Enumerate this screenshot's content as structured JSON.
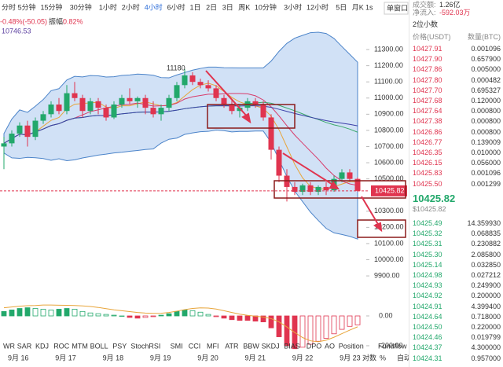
{
  "toolbar": {
    "timeframes": [
      "分时",
      "5分钟",
      "15分钟",
      "30分钟",
      "1小时",
      "2小时",
      "4小时",
      "6小时",
      "1日",
      "2日",
      "3日",
      "周K",
      "10分钟",
      "3小时",
      "12小时",
      "5日",
      "月K"
    ],
    "active": "4小时",
    "speed": "1s",
    "window": "单窗口"
  },
  "stats": {
    "turnover_label": "成交额:",
    "turnover": "1.26亿",
    "inflow_label": "净流入:",
    "inflow": "-592.03万"
  },
  "info": {
    "change": "-0.48%(-50.05)",
    "amplitude_label": "振幅:",
    "amplitude": "0.82%",
    "ma": "10746.53"
  },
  "chart_data": {
    "type": "candlestick",
    "annotation": "11180",
    "current_price": 10425.82,
    "current_label": "10425.82",
    "ylim": [
      9808,
      11412
    ],
    "yticks": [
      {
        "value": 11300,
        "label": "11300.00"
      },
      {
        "value": 11200,
        "label": "11200.00"
      },
      {
        "value": 11100,
        "label": "11100.00"
      },
      {
        "value": 11000,
        "label": "11000.00"
      },
      {
        "value": 10900,
        "label": "10900.00"
      },
      {
        "value": 10800,
        "label": "10800.00"
      },
      {
        "value": 10700,
        "label": "10700.00"
      },
      {
        "value": 10600,
        "label": "10600.00"
      },
      {
        "value": 10500,
        "label": "10500.00"
      },
      {
        "value": 10300,
        "label": "10300.00"
      },
      {
        "value": 10200,
        "label": "10200.00"
      },
      {
        "value": 10100,
        "label": "10100.00"
      },
      {
        "value": 10000,
        "label": "10000.00"
      },
      {
        "value": 9900,
        "label": "9900.00"
      }
    ],
    "candles": [
      [
        10700,
        10760,
        10560,
        10720
      ],
      [
        10720,
        10800,
        10700,
        10780
      ],
      [
        10780,
        10850,
        10760,
        10830
      ],
      [
        10830,
        10860,
        10700,
        10760
      ],
      [
        10760,
        10880,
        10740,
        10860
      ],
      [
        10860,
        10920,
        10840,
        10900
      ],
      [
        10900,
        10980,
        10880,
        10960
      ],
      [
        10960,
        11000,
        10900,
        10920
      ],
      [
        10920,
        11080,
        10900,
        11030
      ],
      [
        11030,
        11100,
        10980,
        11000
      ],
      [
        11000,
        11020,
        10880,
        10920
      ],
      [
        10920,
        11000,
        10900,
        10980
      ],
      [
        10980,
        11000,
        10900,
        10940
      ],
      [
        10940,
        10960,
        10860,
        10880
      ],
      [
        10880,
        10980,
        10870,
        10960
      ],
      [
        10960,
        11020,
        10940,
        11000
      ],
      [
        11000,
        11060,
        10960,
        10980
      ],
      [
        10980,
        11010,
        10940,
        11000
      ],
      [
        11000,
        11020,
        10900,
        10940
      ],
      [
        10940,
        10980,
        10880,
        10900
      ],
      [
        10900,
        10960,
        10860,
        10940
      ],
      [
        10940,
        11020,
        10920,
        11000
      ],
      [
        11000,
        11100,
        10980,
        11080
      ],
      [
        11080,
        11180,
        11060,
        11140
      ],
      [
        11140,
        11160,
        11080,
        11100
      ],
      [
        11100,
        11120,
        11060,
        11080
      ],
      [
        11080,
        11110,
        11040,
        11060
      ],
      [
        11060,
        11080,
        10980,
        11000
      ],
      [
        11000,
        11020,
        10940,
        10960
      ],
      [
        10960,
        10990,
        10900,
        10920
      ],
      [
        10920,
        10960,
        10880,
        10940
      ],
      [
        10940,
        11000,
        10920,
        10980
      ],
      [
        10980,
        11000,
        10940,
        10960
      ],
      [
        10960,
        10980,
        10860,
        10880
      ],
      [
        10880,
        10900,
        10620,
        10680
      ],
      [
        10680,
        10700,
        10480,
        10520
      ],
      [
        10520,
        10560,
        10360,
        10450
      ],
      [
        10450,
        10480,
        10400,
        10420
      ],
      [
        10420,
        10470,
        10400,
        10460
      ],
      [
        10460,
        10480,
        10400,
        10420
      ],
      [
        10420,
        10460,
        10400,
        10450
      ],
      [
        10450,
        10480,
        10400,
        10430
      ],
      [
        10430,
        10520,
        10420,
        10500
      ],
      [
        10500,
        10560,
        10480,
        10540
      ],
      [
        10540,
        10560,
        10480,
        10500
      ],
      [
        10500,
        10510,
        10420,
        10425.82
      ]
    ],
    "up_color": "#22a86b",
    "down_color": "#e0344f",
    "indicator": {
      "values": [
        30,
        40,
        50,
        55,
        50,
        45,
        40,
        45,
        50,
        45,
        30,
        20,
        15,
        10,
        5,
        0,
        -10,
        -15,
        -10,
        -5,
        5,
        15,
        30,
        40,
        35,
        25,
        10,
        -5,
        -15,
        -25,
        -30,
        -30,
        -35,
        -40,
        -80,
        -140,
        -200,
        -220,
        -210,
        -190,
        -170,
        -150,
        -120,
        -90,
        -70,
        -60
      ],
      "ylim": [
        -253,
        116
      ],
      "yticks": [
        {
          "value": 0,
          "label": "0.00"
        },
        {
          "value": -200,
          "label": "-200.00"
        }
      ]
    },
    "dates": [
      "9月 16",
      "9月 17",
      "9月 18",
      "9月 19",
      "9月 20",
      "9月 21",
      "9月 22",
      "9月 23"
    ],
    "indicator_tabs": [
      "WR",
      "SAR",
      "KDJ",
      "ROC",
      "MTM",
      "BOLL",
      "PSY",
      "StochRSI",
      "SMI",
      "CCI",
      "MFI",
      "ATR",
      "BBW",
      "SKDJ",
      "BIAS",
      "DPO",
      "AO",
      "Position",
      "Fundflow"
    ],
    "axis_options": [
      "对数",
      "%",
      "自动"
    ]
  },
  "orderbook": {
    "precision": "2位小数",
    "headers": [
      "价格(USDT)",
      "数量(BTC)"
    ],
    "asks": [
      [
        "10427.91",
        "0.001096"
      ],
      [
        "10427.90",
        "0.657900"
      ],
      [
        "10427.86",
        "0.005000"
      ],
      [
        "10427.80",
        "0.000482"
      ],
      [
        "10427.70",
        "0.695327"
      ],
      [
        "10427.68",
        "0.120000"
      ],
      [
        "10427.64",
        "0.000800"
      ],
      [
        "10427.38",
        "0.000800"
      ],
      [
        "10426.86",
        "0.000800"
      ],
      [
        "10426.77",
        "0.139009"
      ],
      [
        "10426.35",
        "0.010000"
      ],
      [
        "10426.15",
        "0.056000"
      ],
      [
        "10425.83",
        "0.001096"
      ],
      [
        "10425.50",
        "0.001299"
      ]
    ],
    "mid": "10425.82",
    "mid_usd": "$10425.82",
    "bids": [
      [
        "10425.49",
        "14.359930"
      ],
      [
        "10425.32",
        "0.068835"
      ],
      [
        "10425.31",
        "0.230882"
      ],
      [
        "10425.30",
        "2.085800"
      ],
      [
        "10425.14",
        "0.032850"
      ],
      [
        "10424.98",
        "0.027212"
      ],
      [
        "10424.93",
        "0.249900"
      ],
      [
        "10424.92",
        "0.200000"
      ],
      [
        "10424.91",
        "4.399400"
      ],
      [
        "10424.64",
        "0.718000"
      ],
      [
        "10424.50",
        "0.220000"
      ],
      [
        "10424.46",
        "0.019799"
      ],
      [
        "10424.37",
        "4.300000"
      ],
      [
        "10424.31",
        "0.957000"
      ]
    ]
  }
}
